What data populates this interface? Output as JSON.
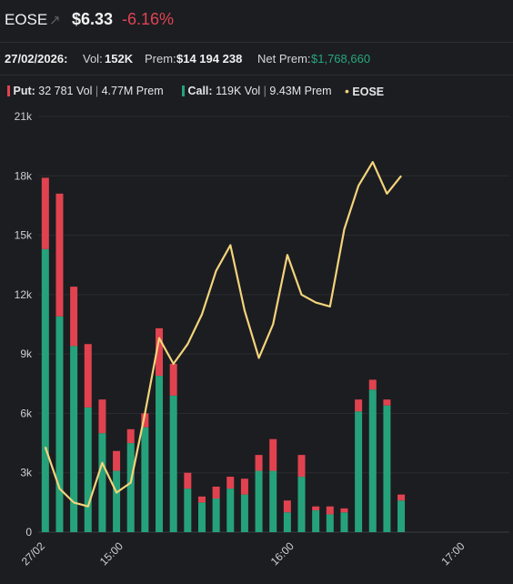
{
  "header": {
    "ticker": "EOSE",
    "arrow_icon": "trend-up-arrow-icon",
    "price": "$6.33",
    "change": "-6.16%"
  },
  "stats": {
    "date": "27/02/2026:",
    "vol_label": "Vol:",
    "vol_value": "152K",
    "prem_label": "Prem:",
    "prem_value": "$14 194 238",
    "net_prem_label": "Net Prem:",
    "net_prem_value": "$1,768,660"
  },
  "legend": {
    "put_label": "Put:",
    "put_vol": "32 781 Vol",
    "put_prem": "4.77M Prem",
    "call_label": "Call:",
    "call_vol": "119K Vol",
    "call_prem": "9.43M Prem",
    "line_label": "EOSE",
    "sep": "|"
  },
  "colors": {
    "put": "#e0434f",
    "call": "#26a27b",
    "line": "#f4d47a",
    "background": "#1c1d21"
  },
  "chart_data": {
    "type": "bar",
    "stacked": true,
    "y_ticks": [
      "0",
      "3k",
      "6k",
      "9k",
      "12k",
      "15k",
      "18k",
      "21k"
    ],
    "ylim": [
      0,
      21000
    ],
    "x_ticks": [
      {
        "label": "27/02",
        "x": 0
      },
      {
        "label": "15:00",
        "x": 5.5
      },
      {
        "label": "16:00",
        "x": 17.5
      },
      {
        "label": "17:00",
        "x": 29.5
      }
    ],
    "xlim": [
      -0.5,
      32.6
    ],
    "series": [
      {
        "name": "Call",
        "values": [
          14300,
          10900,
          9400,
          6300,
          5000,
          3100,
          4500,
          5300,
          7900,
          6900,
          2200,
          1500,
          1700,
          2200,
          1900,
          3100,
          3100,
          1000,
          2800,
          1100,
          900,
          1000,
          6100,
          7200,
          6400,
          1600
        ]
      },
      {
        "name": "Put",
        "values": [
          3600,
          6200,
          3000,
          3200,
          1700,
          1000,
          700,
          700,
          2400,
          1600,
          800,
          300,
          600,
          600,
          800,
          800,
          1600,
          600,
          1100,
          200,
          400,
          200,
          600,
          500,
          300,
          300
        ]
      }
    ],
    "line": {
      "name": "EOSE",
      "x": [
        0,
        1,
        2,
        3,
        4,
        5,
        6,
        7,
        8,
        9,
        10,
        11,
        12,
        13,
        14,
        15,
        16,
        17,
        18,
        19,
        20,
        21,
        22,
        23,
        24,
        25
      ],
      "values": [
        4300,
        2200,
        1500,
        1300,
        3500,
        2000,
        2500,
        6000,
        9800,
        8500,
        9500,
        11000,
        13200,
        14500,
        11200,
        8800,
        10500,
        14000,
        12000,
        11600,
        11400,
        15300,
        17500,
        18700,
        17100,
        18000
      ]
    }
  }
}
